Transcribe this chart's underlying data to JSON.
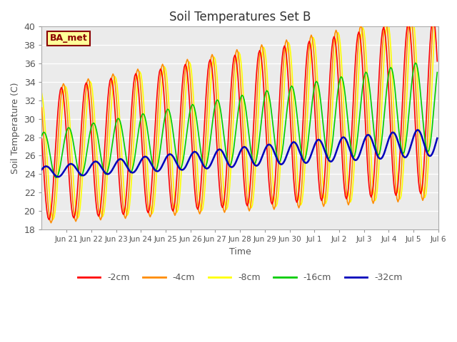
{
  "title": "Soil Temperatures Set B",
  "xlabel": "Time",
  "ylabel": "Soil Temperature (C)",
  "ylim": [
    18,
    40
  ],
  "yticks": [
    18,
    20,
    22,
    24,
    26,
    28,
    30,
    32,
    34,
    36,
    38,
    40
  ],
  "colors": {
    "-2cm": "#FF0000",
    "-4cm": "#FF8C00",
    "-8cm": "#FFFF00",
    "-16cm": "#00CC00",
    "-32cm": "#0000BB"
  },
  "annotation_text": "BA_met",
  "annotation_color": "#8B0000",
  "annotation_bg": "#FFFF99",
  "annotation_border": "#8B0000",
  "linewidth": 1.2,
  "linewidth_32": 1.8
}
